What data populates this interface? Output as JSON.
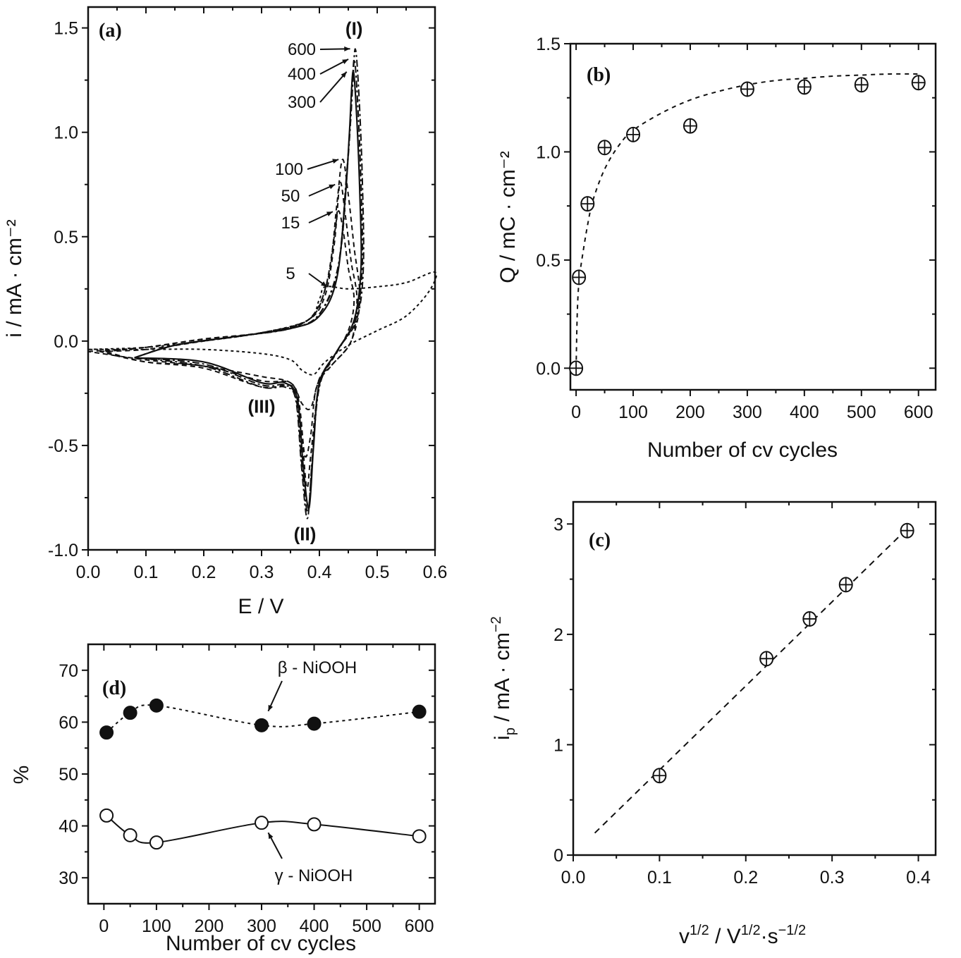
{
  "figure": {
    "panels": [
      "a",
      "b",
      "c",
      "d"
    ]
  },
  "chart_data": [
    {
      "id": "a",
      "type": "line",
      "panel_label": "(a)",
      "xlabel": "E / V",
      "ylabel": "i / mA · cm⁻²",
      "xlim": [
        0.0,
        0.6
      ],
      "ylim": [
        -1.0,
        1.6
      ],
      "xticks": [
        0.0,
        0.1,
        0.2,
        0.3,
        0.4,
        0.5,
        0.6
      ],
      "xtick_labels": [
        "0.0",
        "0.1",
        "0.2",
        "0.3",
        "0.4",
        "0.5",
        "0.6"
      ],
      "yticks": [
        -1.0,
        -0.5,
        0.0,
        0.5,
        1.0,
        1.5
      ],
      "ytick_labels": [
        "-1.0",
        "-0.5",
        "0.0",
        "0.5",
        "1.0",
        "1.5"
      ],
      "peak_labels": [
        {
          "text": "(I)",
          "x": 0.46,
          "y": 1.5
        },
        {
          "text": "(II)",
          "x": 0.375,
          "y": -0.92
        },
        {
          "text": "(III)",
          "x": 0.3,
          "y": -0.31
        }
      ],
      "cycle_annotations": [
        {
          "text": "600",
          "target": [
            0.458,
            1.4
          ]
        },
        {
          "text": "400",
          "target": [
            0.455,
            1.35
          ]
        },
        {
          "text": "300",
          "target": [
            0.452,
            1.29
          ]
        },
        {
          "text": "100",
          "target": [
            0.438,
            0.87
          ]
        },
        {
          "text": "50",
          "target": [
            0.432,
            0.75
          ]
        },
        {
          "text": "15",
          "target": [
            0.428,
            0.62
          ]
        },
        {
          "text": "5",
          "target": [
            0.418,
            0.26
          ]
        }
      ],
      "series": [
        {
          "name": "5 cycles",
          "style": "dotted",
          "points": [
            [
              0.0,
              -0.04
            ],
            [
              0.1,
              -0.03
            ],
            [
              0.2,
              0.0
            ],
            [
              0.3,
              0.04
            ],
            [
              0.38,
              0.1
            ],
            [
              0.4,
              0.2
            ],
            [
              0.41,
              0.26
            ],
            [
              0.45,
              0.25
            ],
            [
              0.5,
              0.26
            ],
            [
              0.55,
              0.28
            ],
            [
              0.6,
              0.33
            ],
            [
              0.59,
              0.24
            ],
            [
              0.55,
              0.12
            ],
            [
              0.5,
              0.05
            ],
            [
              0.45,
              -0.02
            ],
            [
              0.41,
              -0.1
            ],
            [
              0.39,
              -0.16
            ],
            [
              0.37,
              -0.14
            ],
            [
              0.35,
              -0.09
            ],
            [
              0.3,
              -0.06
            ],
            [
              0.2,
              -0.04
            ],
            [
              0.1,
              -0.04
            ],
            [
              0.0,
              -0.04
            ]
          ]
        },
        {
          "name": "15 cycles",
          "style": "dashed",
          "points": [
            [
              0.0,
              -0.05
            ],
            [
              0.1,
              -0.03
            ],
            [
              0.2,
              0.01
            ],
            [
              0.3,
              0.04
            ],
            [
              0.38,
              0.1
            ],
            [
              0.41,
              0.22
            ],
            [
              0.425,
              0.45
            ],
            [
              0.432,
              0.62
            ],
            [
              0.44,
              0.55
            ],
            [
              0.45,
              0.35
            ],
            [
              0.46,
              0.2
            ],
            [
              0.45,
              0.05
            ],
            [
              0.42,
              -0.1
            ],
            [
              0.4,
              -0.18
            ],
            [
              0.385,
              -0.32
            ],
            [
              0.37,
              -0.3
            ],
            [
              0.35,
              -0.2
            ],
            [
              0.3,
              -0.17
            ],
            [
              0.2,
              -0.12
            ],
            [
              0.1,
              -0.09
            ],
            [
              0.0,
              -0.05
            ]
          ]
        },
        {
          "name": "50 cycles",
          "style": "dashed",
          "points": [
            [
              0.02,
              -0.05
            ],
            [
              0.1,
              -0.04
            ],
            [
              0.2,
              0.0
            ],
            [
              0.3,
              0.04
            ],
            [
              0.38,
              0.1
            ],
            [
              0.41,
              0.25
            ],
            [
              0.428,
              0.55
            ],
            [
              0.436,
              0.76
            ],
            [
              0.445,
              0.6
            ],
            [
              0.455,
              0.38
            ],
            [
              0.465,
              0.2
            ],
            [
              0.455,
              0.0
            ],
            [
              0.42,
              -0.12
            ],
            [
              0.395,
              -0.22
            ],
            [
              0.385,
              -0.45
            ],
            [
              0.375,
              -0.55
            ],
            [
              0.365,
              -0.3
            ],
            [
              0.35,
              -0.2
            ],
            [
              0.3,
              -0.19
            ],
            [
              0.2,
              -0.12
            ],
            [
              0.1,
              -0.1
            ],
            [
              0.02,
              -0.05
            ]
          ]
        },
        {
          "name": "100 cycles",
          "style": "dashed",
          "points": [
            [
              0.03,
              -0.05
            ],
            [
              0.1,
              -0.03
            ],
            [
              0.2,
              0.01
            ],
            [
              0.3,
              0.04
            ],
            [
              0.38,
              0.1
            ],
            [
              0.415,
              0.3
            ],
            [
              0.43,
              0.65
            ],
            [
              0.44,
              0.87
            ],
            [
              0.45,
              0.7
            ],
            [
              0.46,
              0.45
            ],
            [
              0.47,
              0.2
            ],
            [
              0.455,
              0.0
            ],
            [
              0.42,
              -0.12
            ],
            [
              0.4,
              -0.2
            ],
            [
              0.385,
              -0.55
            ],
            [
              0.378,
              -0.7
            ],
            [
              0.368,
              -0.4
            ],
            [
              0.355,
              -0.22
            ],
            [
              0.3,
              -0.22
            ],
            [
              0.2,
              -0.13
            ],
            [
              0.1,
              -0.1
            ],
            [
              0.03,
              -0.05
            ]
          ]
        },
        {
          "name": "300 cycles",
          "style": "solid",
          "points": [
            [
              0.08,
              -0.08
            ],
            [
              0.15,
              -0.02
            ],
            [
              0.25,
              0.02
            ],
            [
              0.35,
              0.06
            ],
            [
              0.4,
              0.12
            ],
            [
              0.43,
              0.3
            ],
            [
              0.445,
              0.7
            ],
            [
              0.452,
              1.0
            ],
            [
              0.458,
              1.29
            ],
            [
              0.464,
              1.1
            ],
            [
              0.47,
              0.7
            ],
            [
              0.472,
              0.35
            ],
            [
              0.46,
              0.1
            ],
            [
              0.43,
              -0.05
            ],
            [
              0.4,
              -0.2
            ],
            [
              0.39,
              -0.5
            ],
            [
              0.382,
              -0.8
            ],
            [
              0.372,
              -0.6
            ],
            [
              0.362,
              -0.28
            ],
            [
              0.34,
              -0.2
            ],
            [
              0.3,
              -0.2
            ],
            [
              0.2,
              -0.1
            ],
            [
              0.08,
              -0.08
            ]
          ]
        },
        {
          "name": "400 cycles",
          "style": "dash-dot",
          "points": [
            [
              0.08,
              -0.08
            ],
            [
              0.15,
              -0.02
            ],
            [
              0.25,
              0.02
            ],
            [
              0.35,
              0.06
            ],
            [
              0.4,
              0.13
            ],
            [
              0.432,
              0.35
            ],
            [
              0.447,
              0.8
            ],
            [
              0.455,
              1.1
            ],
            [
              0.46,
              1.35
            ],
            [
              0.466,
              1.15
            ],
            [
              0.472,
              0.75
            ],
            [
              0.474,
              0.35
            ],
            [
              0.462,
              0.1
            ],
            [
              0.43,
              -0.05
            ],
            [
              0.4,
              -0.21
            ],
            [
              0.388,
              -0.55
            ],
            [
              0.38,
              -0.82
            ],
            [
              0.37,
              -0.6
            ],
            [
              0.36,
              -0.28
            ],
            [
              0.34,
              -0.21
            ],
            [
              0.3,
              -0.21
            ],
            [
              0.2,
              -0.11
            ],
            [
              0.08,
              -0.08
            ]
          ]
        },
        {
          "name": "600 cycles",
          "style": "dash-dot",
          "points": [
            [
              0.08,
              -0.08
            ],
            [
              0.15,
              -0.02
            ],
            [
              0.25,
              0.02
            ],
            [
              0.35,
              0.06
            ],
            [
              0.4,
              0.13
            ],
            [
              0.434,
              0.38
            ],
            [
              0.449,
              0.85
            ],
            [
              0.457,
              1.2
            ],
            [
              0.462,
              1.4
            ],
            [
              0.468,
              1.2
            ],
            [
              0.474,
              0.8
            ],
            [
              0.476,
              0.35
            ],
            [
              0.464,
              0.1
            ],
            [
              0.43,
              -0.05
            ],
            [
              0.4,
              -0.22
            ],
            [
              0.387,
              -0.6
            ],
            [
              0.379,
              -0.85
            ],
            [
              0.369,
              -0.6
            ],
            [
              0.359,
              -0.28
            ],
            [
              0.34,
              -0.22
            ],
            [
              0.3,
              -0.22
            ],
            [
              0.2,
              -0.12
            ],
            [
              0.08,
              -0.08
            ]
          ]
        }
      ]
    },
    {
      "id": "b",
      "type": "scatter",
      "panel_label": "(b)",
      "xlabel": "Number of cv cycles",
      "ylabel": "Q / mC · cm⁻²",
      "xlim": [
        -10,
        630
      ],
      "ylim": [
        -0.1,
        1.5
      ],
      "xticks": [
        0,
        100,
        200,
        300,
        400,
        500,
        600
      ],
      "xtick_labels": [
        "0",
        "100",
        "200",
        "300",
        "400",
        "500",
        "600"
      ],
      "yticks": [
        0.0,
        0.5,
        1.0,
        1.5
      ],
      "ytick_labels": [
        "0.0",
        "0.5",
        "1.0",
        "1.5"
      ],
      "marker": "circle-plus",
      "x": [
        0,
        5,
        20,
        50,
        100,
        200,
        300,
        400,
        500,
        600
      ],
      "y": [
        0.0,
        0.42,
        0.76,
        1.02,
        1.08,
        1.12,
        1.29,
        1.3,
        1.31,
        1.32
      ],
      "fit": {
        "style": "dashed",
        "model": "Q = 1.36 · (1 − exp(−n/60))",
        "x": [
          0,
          2,
          5,
          10,
          20,
          30,
          50,
          75,
          100,
          150,
          200,
          250,
          300,
          350,
          400,
          450,
          500,
          550,
          600
        ],
        "y": [
          0.0,
          0.25,
          0.4,
          0.5,
          0.66,
          0.78,
          0.92,
          1.03,
          1.1,
          1.18,
          1.24,
          1.28,
          1.31,
          1.33,
          1.34,
          1.35,
          1.355,
          1.36,
          1.36
        ]
      }
    },
    {
      "id": "c",
      "type": "scatter",
      "panel_label": "(c)",
      "xlabel": "v^1/2 / V^1/2 · s^−1/2",
      "ylabel": "i_p / mA · cm⁻²",
      "xlim": [
        0.0,
        0.42
      ],
      "ylim": [
        0,
        3.2
      ],
      "xticks": [
        0.0,
        0.1,
        0.2,
        0.3,
        0.4
      ],
      "xtick_labels": [
        "0.0",
        "0.1",
        "0.2",
        "0.3",
        "0.4"
      ],
      "yticks": [
        0,
        1,
        2,
        3
      ],
      "ytick_labels": [
        "0",
        "1",
        "2",
        "3"
      ],
      "marker": "circle-plus",
      "x": [
        0.1,
        0.224,
        0.274,
        0.316,
        0.387
      ],
      "y": [
        0.72,
        1.78,
        2.14,
        2.45,
        2.94
      ],
      "fit": {
        "style": "dashed",
        "x": [
          0.025,
          0.39
        ],
        "y": [
          0.2,
          2.98
        ]
      }
    },
    {
      "id": "d",
      "type": "line",
      "panel_label": "(d)",
      "xlabel": "Number of cv cycles",
      "ylabel": "%",
      "xlim": [
        -30,
        630
      ],
      "ylim": [
        25,
        75
      ],
      "xticks": [
        0,
        100,
        200,
        300,
        400,
        500,
        600
      ],
      "xtick_labels": [
        "0",
        "100",
        "200",
        "300",
        "400",
        "500",
        "600"
      ],
      "yticks": [
        30,
        40,
        50,
        60,
        70
      ],
      "ytick_labels": [
        "30",
        "40",
        "50",
        "60",
        "70"
      ],
      "series": [
        {
          "name": "β - NiOOH",
          "marker": "filled-circle",
          "line": "dotted",
          "x": [
            5,
            50,
            100,
            300,
            400,
            600
          ],
          "y": [
            58.0,
            61.8,
            63.2,
            59.4,
            59.7,
            62.0
          ]
        },
        {
          "name": "γ - NiOOH",
          "marker": "open-circle",
          "line": "solid",
          "x": [
            5,
            50,
            100,
            300,
            400,
            600
          ],
          "y": [
            42.0,
            38.2,
            36.8,
            40.6,
            40.3,
            38.0
          ]
        }
      ],
      "annotations": [
        {
          "text": "β - NiOOH",
          "arrow_to": [
            310,
            61.3
          ]
        },
        {
          "text": "γ - NiOOH",
          "arrow_to": [
            310,
            39.5
          ]
        }
      ]
    }
  ]
}
